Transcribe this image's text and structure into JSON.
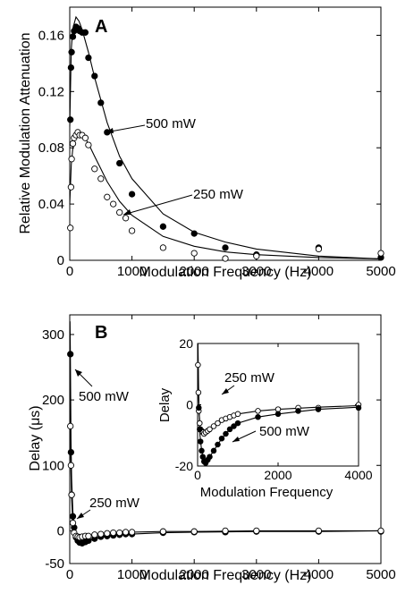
{
  "chart_data": [
    {
      "type": "scatter",
      "panel_label": "A",
      "xlabel": "Modulation Frequency (Hz)",
      "ylabel": "Relative Modulation Attenuation",
      "xlim": [
        0,
        5000
      ],
      "ylim": [
        0,
        0.18
      ],
      "xticks": [
        "0",
        "1000",
        "2000",
        "3000",
        "4000",
        "5000"
      ],
      "yticks": [
        "0",
        "0.04",
        "0.08",
        "0.12",
        "0.16"
      ],
      "grid": false,
      "series": [
        {
          "name": "500 mW",
          "marker": "filled-circle",
          "points": [
            [
              10,
              0.1
            ],
            [
              20,
              0.137
            ],
            [
              30,
              0.148
            ],
            [
              50,
              0.159
            ],
            [
              70,
              0.163
            ],
            [
              100,
              0.166
            ],
            [
              130,
              0.165
            ],
            [
              160,
              0.163
            ],
            [
              200,
              0.162
            ],
            [
              250,
              0.162
            ],
            [
              300,
              0.144
            ],
            [
              400,
              0.131
            ],
            [
              500,
              0.112
            ],
            [
              600,
              0.091
            ],
            [
              800,
              0.069
            ],
            [
              1000,
              0.047
            ],
            [
              1500,
              0.024
            ],
            [
              2000,
              0.019
            ],
            [
              2500,
              0.009
            ],
            [
              3000,
              0.004
            ],
            [
              4000,
              0.009
            ],
            [
              5000,
              0.002
            ]
          ],
          "fit": [
            [
              0,
              0.095
            ],
            [
              25,
              0.15
            ],
            [
              50,
              0.165
            ],
            [
              100,
              0.173
            ],
            [
              150,
              0.17
            ],
            [
              200,
              0.164
            ],
            [
              300,
              0.148
            ],
            [
              400,
              0.13
            ],
            [
              500,
              0.114
            ],
            [
              600,
              0.098
            ],
            [
              800,
              0.074
            ],
            [
              1000,
              0.058
            ],
            [
              1500,
              0.033
            ],
            [
              2000,
              0.02
            ],
            [
              2500,
              0.013
            ],
            [
              3000,
              0.008
            ],
            [
              4000,
              0.003
            ],
            [
              5000,
              0.001
            ]
          ]
        },
        {
          "name": "250 mW",
          "marker": "open-circle",
          "points": [
            [
              10,
              0.023
            ],
            [
              20,
              0.052
            ],
            [
              30,
              0.072
            ],
            [
              50,
              0.083
            ],
            [
              70,
              0.087
            ],
            [
              100,
              0.089
            ],
            [
              130,
              0.091
            ],
            [
              160,
              0.089
            ],
            [
              200,
              0.089
            ],
            [
              250,
              0.087
            ],
            [
              300,
              0.082
            ],
            [
              400,
              0.065
            ],
            [
              500,
              0.058
            ],
            [
              600,
              0.045
            ],
            [
              700,
              0.04
            ],
            [
              800,
              0.034
            ],
            [
              900,
              0.03
            ],
            [
              1000,
              0.021
            ],
            [
              1500,
              0.009
            ],
            [
              2000,
              0.005
            ],
            [
              2500,
              0.001
            ],
            [
              3000,
              0.003
            ],
            [
              4000,
              0.008
            ],
            [
              5000,
              0.005
            ]
          ],
          "fit": [
            [
              0,
              0.04
            ],
            [
              25,
              0.068
            ],
            [
              50,
              0.08
            ],
            [
              100,
              0.09
            ],
            [
              150,
              0.092
            ],
            [
              200,
              0.09
            ],
            [
              300,
              0.083
            ],
            [
              400,
              0.074
            ],
            [
              500,
              0.065
            ],
            [
              600,
              0.056
            ],
            [
              800,
              0.042
            ],
            [
              1000,
              0.032
            ],
            [
              1500,
              0.017
            ],
            [
              2000,
              0.01
            ],
            [
              2500,
              0.006
            ],
            [
              3000,
              0.004
            ],
            [
              4000,
              0.002
            ],
            [
              5000,
              0.001
            ]
          ]
        }
      ],
      "annotations": [
        {
          "text": "500 mW",
          "points_to": [
            600,
            0.091
          ]
        },
        {
          "text": "250 mW",
          "points_to": [
            900,
            0.034
          ]
        }
      ]
    },
    {
      "type": "scatter",
      "panel_label": "B",
      "xlabel": "Modulation Frequency (Hz)",
      "ylabel": "Delay (μs)",
      "xlim": [
        0,
        5000
      ],
      "ylim": [
        -50,
        330
      ],
      "xticks": [
        "0",
        "1000",
        "2000",
        "3000",
        "4000",
        "5000"
      ],
      "yticks": [
        "-50",
        "0",
        "100",
        "200",
        "300"
      ],
      "grid": false,
      "series": [
        {
          "name": "500 mW",
          "marker": "filled-circle",
          "points": [
            [
              10,
              270
            ],
            [
              20,
              120
            ],
            [
              30,
              55
            ],
            [
              50,
              22
            ],
            [
              70,
              5
            ],
            [
              100,
              -10
            ],
            [
              130,
              -15
            ],
            [
              160,
              -18
            ],
            [
              200,
              -19
            ],
            [
              250,
              -17
            ],
            [
              300,
              -15
            ],
            [
              400,
              -12
            ],
            [
              500,
              -9
            ],
            [
              600,
              -8
            ],
            [
              700,
              -7
            ],
            [
              800,
              -6
            ],
            [
              900,
              -5
            ],
            [
              1000,
              -5
            ],
            [
              1500,
              -3
            ],
            [
              2000,
              -2
            ],
            [
              2500,
              -2
            ],
            [
              3000,
              -1
            ],
            [
              4000,
              -1
            ],
            [
              5000,
              -1
            ]
          ],
          "fit": [
            [
              5,
              320
            ],
            [
              10,
              270
            ],
            [
              20,
              140
            ],
            [
              30,
              80
            ],
            [
              50,
              30
            ],
            [
              70,
              8
            ],
            [
              100,
              -8
            ],
            [
              150,
              -17
            ],
            [
              200,
              -19
            ],
            [
              300,
              -16
            ],
            [
              400,
              -12
            ],
            [
              600,
              -8
            ],
            [
              800,
              -6
            ],
            [
              1000,
              -5
            ],
            [
              1500,
              -3
            ],
            [
              2000,
              -2
            ],
            [
              3000,
              -1
            ],
            [
              4000,
              -1
            ],
            [
              5000,
              0
            ]
          ]
        },
        {
          "name": "250 mW",
          "marker": "open-circle",
          "points": [
            [
              10,
              160
            ],
            [
              20,
              100
            ],
            [
              30,
              55
            ],
            [
              50,
              12
            ],
            [
              70,
              -3
            ],
            [
              100,
              -8
            ],
            [
              130,
              -9
            ],
            [
              160,
              -10
            ],
            [
              200,
              -9
            ],
            [
              250,
              -8
            ],
            [
              300,
              -8
            ],
            [
              400,
              -6
            ],
            [
              500,
              -5
            ],
            [
              600,
              -4
            ],
            [
              700,
              -3
            ],
            [
              800,
              -3
            ],
            [
              900,
              -2
            ],
            [
              1000,
              -2
            ],
            [
              1500,
              -1
            ],
            [
              2000,
              -1
            ],
            [
              2500,
              0
            ],
            [
              3000,
              0
            ],
            [
              4000,
              0
            ],
            [
              5000,
              0
            ]
          ],
          "fit": [
            [
              5,
              200
            ],
            [
              10,
              150
            ],
            [
              20,
              90
            ],
            [
              30,
              50
            ],
            [
              50,
              10
            ],
            [
              70,
              -3
            ],
            [
              100,
              -8
            ],
            [
              150,
              -10
            ],
            [
              200,
              -9
            ],
            [
              300,
              -8
            ],
            [
              400,
              -6
            ],
            [
              600,
              -4
            ],
            [
              800,
              -3
            ],
            [
              1000,
              -2
            ],
            [
              1500,
              -1
            ],
            [
              2000,
              -1
            ],
            [
              3000,
              0
            ],
            [
              5000,
              0
            ]
          ]
        }
      ],
      "annotations": [
        {
          "text": "500 mW",
          "points_to": [
            20,
            270
          ]
        },
        {
          "text": "250 mW",
          "points_to": [
            50,
            12
          ]
        }
      ]
    },
    {
      "type": "scatter",
      "panel_label": "B inset",
      "xlabel": "Modulation Frequency",
      "ylabel": "Delay",
      "xlim": [
        0,
        4000
      ],
      "ylim": [
        -20,
        20
      ],
      "xticks": [
        "0",
        "2000",
        "4000"
      ],
      "yticks": [
        "-20",
        "0",
        "20"
      ],
      "grid": false,
      "series": [
        {
          "name": "250 mW",
          "marker": "open-circle",
          "points": [
            [
              10,
              13
            ],
            [
              20,
              4
            ],
            [
              30,
              -2
            ],
            [
              50,
              -6
            ],
            [
              70,
              -8
            ],
            [
              100,
              -8.5
            ],
            [
              130,
              -9
            ],
            [
              160,
              -9.5
            ],
            [
              200,
              -9
            ],
            [
              250,
              -8.5
            ],
            [
              300,
              -8
            ],
            [
              400,
              -7
            ],
            [
              500,
              -6
            ],
            [
              600,
              -5
            ],
            [
              700,
              -4.5
            ],
            [
              800,
              -4
            ],
            [
              900,
              -3.5
            ],
            [
              1000,
              -3
            ],
            [
              1500,
              -2
            ],
            [
              2000,
              -1.5
            ],
            [
              2500,
              -1
            ],
            [
              3000,
              -1
            ],
            [
              4000,
              0
            ]
          ],
          "fit": [
            [
              5,
              20
            ],
            [
              20,
              6
            ],
            [
              40,
              -3
            ],
            [
              60,
              -7
            ],
            [
              100,
              -9
            ],
            [
              150,
              -10
            ],
            [
              200,
              -9.5
            ],
            [
              300,
              -8.5
            ],
            [
              400,
              -7
            ],
            [
              600,
              -5
            ],
            [
              800,
              -4
            ],
            [
              1000,
              -3
            ],
            [
              1500,
              -2
            ],
            [
              2000,
              -1.5
            ],
            [
              3000,
              -0.8
            ],
            [
              4000,
              -0.3
            ]
          ]
        },
        {
          "name": "500 mW",
          "marker": "filled-circle",
          "points": [
            [
              30,
              -1
            ],
            [
              50,
              -8
            ],
            [
              70,
              -12
            ],
            [
              100,
              -15
            ],
            [
              130,
              -17
            ],
            [
              160,
              -18.5
            ],
            [
              200,
              -19
            ],
            [
              250,
              -18
            ],
            [
              300,
              -17
            ],
            [
              400,
              -15
            ],
            [
              500,
              -13
            ],
            [
              600,
              -11
            ],
            [
              700,
              -9.5
            ],
            [
              800,
              -8
            ],
            [
              900,
              -7
            ],
            [
              1000,
              -6
            ],
            [
              1500,
              -4
            ],
            [
              2000,
              -3
            ],
            [
              2500,
              -2
            ],
            [
              3000,
              -1.5
            ],
            [
              4000,
              -1
            ]
          ],
          "fit": [
            [
              10,
              20
            ],
            [
              30,
              2
            ],
            [
              60,
              -10
            ],
            [
              100,
              -15
            ],
            [
              150,
              -18
            ],
            [
              200,
              -19
            ],
            [
              300,
              -17
            ],
            [
              400,
              -15
            ],
            [
              600,
              -11
            ],
            [
              800,
              -8
            ],
            [
              1000,
              -6
            ],
            [
              1500,
              -4
            ],
            [
              2000,
              -3
            ],
            [
              3000,
              -1.5
            ],
            [
              4000,
              -0.8
            ]
          ]
        }
      ],
      "annotations": [
        {
          "text": "250 mW",
          "points_to": [
            800,
            -4
          ]
        },
        {
          "text": "500 mW",
          "points_to": [
            700,
            -9.5
          ]
        }
      ]
    }
  ]
}
